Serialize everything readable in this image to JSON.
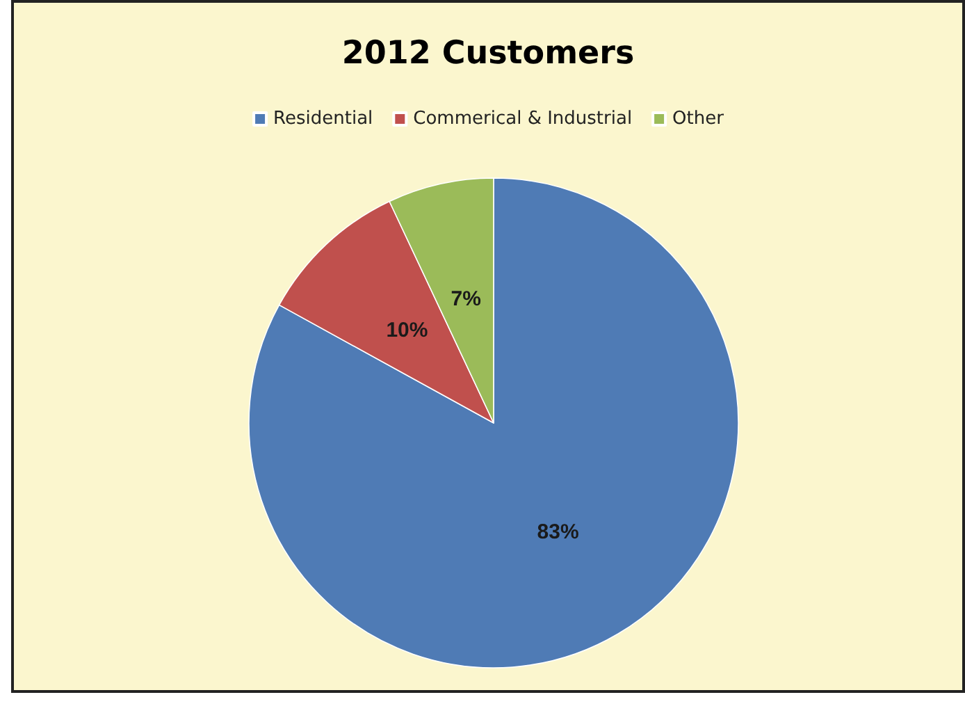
{
  "chart_data": {
    "type": "pie",
    "title": "2012 Customers",
    "categories": [
      "Residential",
      "Commerical & Industrial",
      "Other"
    ],
    "values": [
      83,
      10,
      7
    ],
    "colors": [
      "#4f7bb5",
      "#c0504d",
      "#9bbb59"
    ],
    "value_labels": [
      "83%",
      "10%",
      "7%"
    ],
    "legend": "top"
  }
}
